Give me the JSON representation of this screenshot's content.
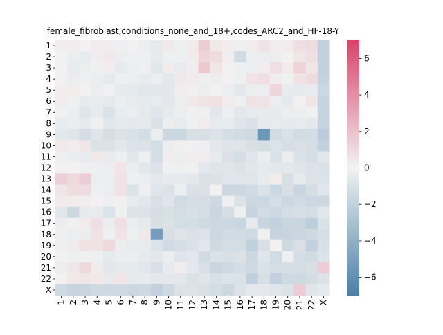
{
  "chart_data": {
    "type": "heatmap",
    "title": "female_fibroblast,conditions_none_and_18+,codes_ARC2_and_HF-18-Y",
    "xlabel": "",
    "ylabel": "",
    "x_categories": [
      "1",
      "2",
      "3",
      "4",
      "5",
      "6",
      "7",
      "8",
      "9",
      "10",
      "11",
      "12",
      "13",
      "14",
      "15",
      "16",
      "17",
      "18",
      "19",
      "20",
      "21",
      "22",
      "X"
    ],
    "y_categories": [
      "1",
      "2",
      "3",
      "4",
      "5",
      "6",
      "7",
      "8",
      "9",
      "10",
      "11",
      "12",
      "13",
      "14",
      "15",
      "16",
      "17",
      "18",
      "19",
      "20",
      "21",
      "22",
      "X"
    ],
    "values": [
      [
        0.2,
        0.3,
        0.1,
        0.3,
        0.2,
        -0.2,
        0.1,
        -0.3,
        -0.5,
        0.4,
        -0.2,
        0.3,
        1.5,
        0.4,
        0.2,
        -0.2,
        0.3,
        0.6,
        0.2,
        0.3,
        0.8,
        0.9,
        -2.0
      ],
      [
        0.1,
        -0.3,
        -0.4,
        0.2,
        0.4,
        -0.3,
        -0.2,
        -0.2,
        -0.5,
        -0.2,
        -0.2,
        0.3,
        1.2,
        0.9,
        0.2,
        -1.4,
        -0.3,
        -0.3,
        -0.3,
        0.1,
        0.5,
        0.8,
        -2.0
      ],
      [
        0.1,
        -0.4,
        -0.3,
        -0.1,
        0.2,
        -0.5,
        -0.3,
        -0.2,
        -0.7,
        0.3,
        -0.4,
        0.2,
        1.7,
        0.5,
        0.1,
        -0.2,
        -0.3,
        0.2,
        0.8,
        0.3,
        1.3,
        0.5,
        -2.0
      ],
      [
        0.1,
        -0.3,
        -0.2,
        -0.3,
        -0.5,
        -0.2,
        -0.3,
        -0.4,
        -0.3,
        -0.6,
        0.4,
        0.3,
        -0.2,
        -0.3,
        0.1,
        -0.2,
        0.6,
        0.8,
        0.2,
        -0.1,
        0.6,
        0.9,
        -1.8
      ],
      [
        0.2,
        0.3,
        0.1,
        -0.3,
        -0.1,
        -0.4,
        -0.5,
        -0.7,
        -0.7,
        -0.6,
        0.2,
        -0.1,
        -0.3,
        0.1,
        -0.3,
        -0.6,
        -0.3,
        -0.3,
        1.2,
        -0.4,
        -0.5,
        -0.4,
        -1.6
      ],
      [
        0.3,
        -0.2,
        -0.4,
        -0.4,
        -0.5,
        -0.3,
        -0.4,
        -0.5,
        -0.4,
        -0.6,
        -0.3,
        0.4,
        0.6,
        0.7,
        0.3,
        -0.2,
        0.7,
        0.6,
        -0.3,
        -0.5,
        0.1,
        0.5,
        -1.8
      ],
      [
        -0.1,
        -0.3,
        -0.8,
        -0.4,
        -0.9,
        -0.4,
        -0.3,
        -0.5,
        -0.8,
        -0.5,
        -0.3,
        -0.1,
        -0.2,
        -0.7,
        -0.2,
        -0.6,
        -0.4,
        -0.4,
        -0.5,
        -0.3,
        -0.3,
        -0.1,
        -1.8
      ],
      [
        -0.4,
        -0.3,
        -0.5,
        -0.1,
        -0.7,
        -0.5,
        -0.6,
        -0.5,
        -1.0,
        -0.3,
        -0.4,
        -0.1,
        0.3,
        -0.4,
        -0.4,
        -0.8,
        -1.0,
        -0.5,
        -0.4,
        -0.5,
        -0.4,
        -0.6,
        -1.8
      ],
      [
        -0.6,
        -0.8,
        -1.2,
        -0.8,
        -1.2,
        -0.9,
        -1.0,
        -1.3,
        -0.3,
        -1.6,
        -1.6,
        -1.1,
        -1.1,
        -0.9,
        -1.2,
        -1.4,
        -1.5,
        -5.5,
        -1.4,
        -1.0,
        -1.4,
        -1.3,
        -2.3
      ],
      [
        0.4,
        0.2,
        0.5,
        -1.0,
        -0.9,
        -0.6,
        -0.9,
        -0.9,
        -1.3,
        -0.3,
        -0.1,
        -0.1,
        -0.2,
        -0.6,
        -0.8,
        -0.8,
        -1.1,
        -1.3,
        -0.9,
        -1.2,
        -1.1,
        -1.2,
        -2.0
      ],
      [
        -0.2,
        -0.3,
        -0.4,
        0.4,
        -0.4,
        -0.2,
        -0.7,
        -0.2,
        -1.2,
        0.2,
        -0.3,
        0.2,
        0.2,
        -0.4,
        -1.0,
        -1.2,
        -0.8,
        -0.3,
        -1.0,
        -0.3,
        -1.0,
        -1.2,
        -0.7
      ],
      [
        0.1,
        0.1,
        -0.2,
        -0.2,
        -0.3,
        0.5,
        -0.3,
        -0.7,
        -0.9,
        -0.1,
        -0.2,
        -0.1,
        -0.6,
        -0.8,
        -0.8,
        -0.9,
        -0.7,
        -0.5,
        -0.6,
        -0.6,
        -0.8,
        -0.9,
        -1.0
      ],
      [
        1.4,
        1.0,
        1.5,
        -0.3,
        -0.3,
        0.6,
        -0.2,
        -0.3,
        -0.6,
        -0.4,
        -0.5,
        -0.6,
        -1.0,
        -0.9,
        -0.8,
        -0.8,
        -0.8,
        -0.4,
        0.3,
        -1.1,
        -0.5,
        -0.9,
        -0.9
      ],
      [
        0.5,
        0.9,
        0.9,
        -0.2,
        -0.3,
        0.7,
        -0.9,
        -0.2,
        -0.8,
        -0.9,
        -0.3,
        -1.0,
        -1.0,
        0.1,
        -1.6,
        -1.6,
        -1.4,
        -0.9,
        -1.6,
        -1.1,
        -1.7,
        -1.2,
        -0.8
      ],
      [
        0.3,
        0.2,
        0.2,
        0.1,
        -0.2,
        0.1,
        -0.4,
        -0.7,
        -1.1,
        -0.8,
        -1.4,
        -1.2,
        -1.2,
        -1.5,
        -0.1,
        -0.9,
        -1.6,
        -1.6,
        -1.2,
        -1.6,
        -1.4,
        -1.6,
        -1.6
      ],
      [
        -0.7,
        -1.6,
        -0.4,
        -0.4,
        -0.9,
        -0.1,
        -0.9,
        -0.9,
        -1.2,
        -1.1,
        -1.3,
        -1.1,
        -1.3,
        -1.7,
        -1.2,
        -0.2,
        -1.8,
        -1.4,
        -1.6,
        -1.3,
        -1.1,
        -1.2,
        -0.7
      ],
      [
        -0.3,
        -0.1,
        0.3,
        0.8,
        -0.3,
        0.8,
        -0.3,
        -0.5,
        -1.1,
        -1.0,
        -1.3,
        -1.3,
        -1.5,
        -1.6,
        -1.6,
        -1.7,
        -0.4,
        -1.7,
        -2.0,
        -1.7,
        -1.7,
        -2.2,
        -1.0
      ],
      [
        -0.2,
        -0.3,
        -0.3,
        0.7,
        -0.2,
        0.6,
        -0.2,
        0.4,
        -5.2,
        -1.1,
        -0.8,
        -1.0,
        -0.9,
        -1.6,
        -1.4,
        -1.4,
        -1.5,
        -0.1,
        -1.8,
        -1.8,
        -1.7,
        -1.5,
        -1.2
      ],
      [
        -0.2,
        0.3,
        0.7,
        0.6,
        1.0,
        -0.3,
        -0.4,
        -0.4,
        -0.9,
        -1.4,
        -1.2,
        -1.0,
        -0.7,
        -1.5,
        -1.2,
        -1.3,
        -2.1,
        -1.1,
        0.1,
        -1.5,
        -1.1,
        -2.0,
        -1.1
      ],
      [
        -0.1,
        -0.2,
        -0.2,
        -0.2,
        -0.5,
        -0.3,
        -0.3,
        -0.5,
        -0.6,
        -0.3,
        -0.8,
        -0.7,
        -1.4,
        -1.0,
        -1.1,
        -1.0,
        -1.6,
        -0.8,
        -1.4,
        -0.2,
        -1.2,
        -1.4,
        -0.9
      ],
      [
        -0.3,
        0.5,
        1.0,
        0.3,
        -0.6,
        -0.5,
        -0.5,
        -0.7,
        -1.1,
        -0.4,
        0.2,
        -0.6,
        -1.1,
        -1.7,
        -1.5,
        -1.2,
        -1.5,
        -1.0,
        -1.3,
        -1.2,
        -1.3,
        -1.1,
        1.5
      ],
      [
        0.1,
        0.4,
        0.5,
        0.4,
        -0.4,
        0.5,
        -0.5,
        -0.4,
        -0.6,
        -0.6,
        -0.6,
        -1.0,
        -0.8,
        -1.1,
        -0.9,
        -1.0,
        -2.1,
        -1.1,
        -2.0,
        -1.5,
        -1.5,
        -1.3,
        -0.9
      ],
      [
        -1.5,
        -1.8,
        -1.7,
        -1.5,
        -1.5,
        -1.5,
        -1.6,
        -1.5,
        -2.0,
        -1.5,
        -0.9,
        -0.9,
        -1.1,
        -1.3,
        -1.6,
        -0.9,
        -0.6,
        -0.6,
        -0.8,
        -0.9,
        1.5,
        -0.8,
        -0.5
      ]
    ],
    "colorbar": {
      "vmin": -7,
      "vmax": 7,
      "ticks": [
        -6,
        -4,
        -2,
        0,
        2,
        4,
        6
      ],
      "tick_labels": [
        "−6",
        "−4",
        "−2",
        "0",
        "2",
        "4",
        "6"
      ],
      "low_color": "#4a7fa8",
      "mid_color": "#f2f2f2",
      "high_color": "#d9436b"
    },
    "grid": false
  }
}
